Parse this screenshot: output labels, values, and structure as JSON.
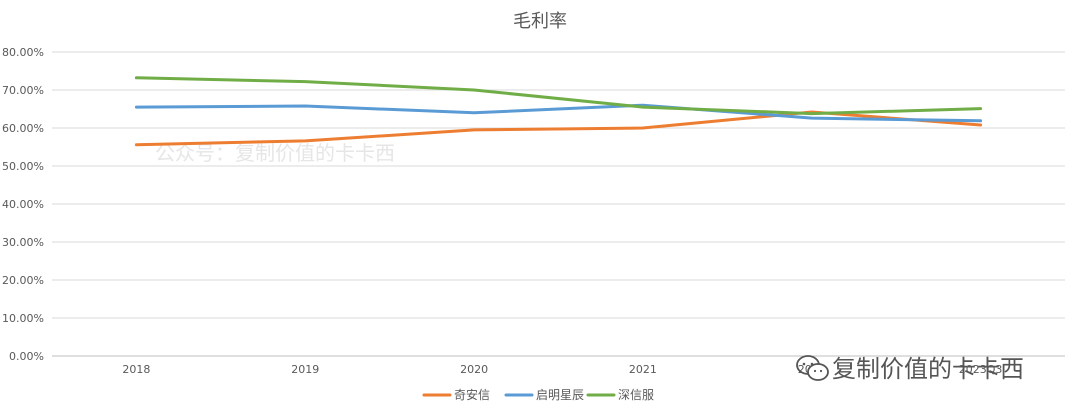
{
  "chart_data": {
    "type": "line",
    "title": "毛利率",
    "categories": [
      "2018",
      "2019",
      "2020",
      "2021",
      "2022",
      "2023Q3"
    ],
    "series": [
      {
        "name": "奇安信",
        "color": "#ed7d31",
        "values": [
          55.6,
          56.6,
          59.5,
          60.0,
          64.2,
          60.8
        ]
      },
      {
        "name": "启明星辰",
        "color": "#5b9bd5",
        "values": [
          65.5,
          65.8,
          64.0,
          66.0,
          62.6,
          61.9
        ]
      },
      {
        "name": "深信服",
        "color": "#70ad47",
        "values": [
          73.2,
          72.2,
          70.0,
          65.5,
          63.8,
          65.1
        ]
      }
    ],
    "y_ticks": [
      "0.00%",
      "10.00%",
      "20.00%",
      "30.00%",
      "40.00%",
      "50.00%",
      "60.00%",
      "70.00%",
      "80.00%"
    ],
    "ylim": [
      0,
      80
    ],
    "grid": true,
    "legend_position": "bottom"
  },
  "watermarks": {
    "faint_text": "公众号：复制价值的卡卡西",
    "logo_text": "复制价值的卡卡西"
  }
}
